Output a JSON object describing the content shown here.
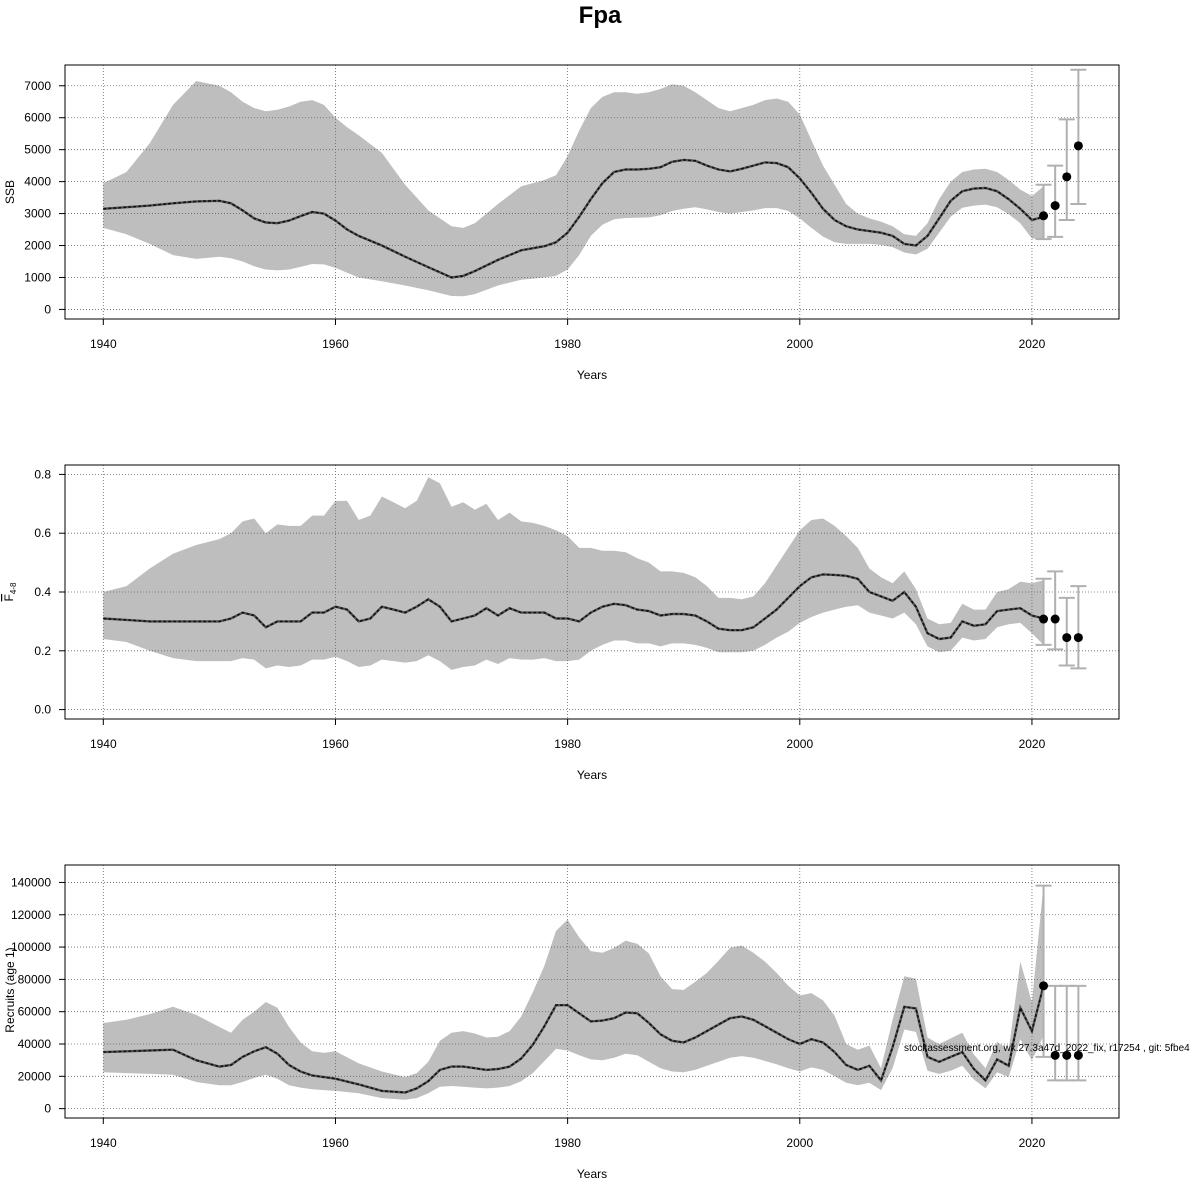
{
  "title": "Fpa",
  "footnote": "stockassessment.org, wk.27.3a47d_2022_fix, r17254 , git: 5fbe4",
  "colors": {
    "band": "#bebebe",
    "line": "#333333",
    "errorbar": "#b0b0b0",
    "point": "#000000",
    "grid": "#666666"
  },
  "chart_data": [
    {
      "type": "line",
      "ylabel": "SSB",
      "xlabel": "Years",
      "xlim": [
        1940,
        2024
      ],
      "ylim": [
        0,
        7400
      ],
      "xticks": [
        1940,
        1960,
        1980,
        2000,
        2020
      ],
      "yticks": [
        0,
        1000,
        2000,
        3000,
        4000,
        5000,
        6000,
        7000
      ],
      "grid": true,
      "series": [
        {
          "x": [
            1940,
            1942,
            1944,
            1946,
            1948,
            1950,
            1951,
            1952,
            1953,
            1954,
            1955,
            1956,
            1957,
            1958,
            1959,
            1960,
            1961,
            1962,
            1964,
            1966,
            1968,
            1970,
            1971,
            1972,
            1974,
            1976,
            1978,
            1979,
            1980,
            1981,
            1982,
            1983,
            1984,
            1985,
            1986,
            1987,
            1988,
            1989,
            1990,
            1991,
            1992,
            1993,
            1994,
            1995,
            1996,
            1997,
            1998,
            1999,
            2000,
            2001,
            2002,
            2003,
            2004,
            2005,
            2006,
            2007,
            2008,
            2009,
            2010,
            2011,
            2012,
            2013,
            2014,
            2015,
            2016,
            2017,
            2018,
            2019,
            2020,
            2021
          ],
          "y": [
            3150,
            3200,
            3250,
            3320,
            3380,
            3400,
            3320,
            3100,
            2850,
            2720,
            2700,
            2780,
            2920,
            3050,
            3000,
            2780,
            2500,
            2300,
            2000,
            1650,
            1320,
            1000,
            1050,
            1200,
            1550,
            1850,
            1980,
            2100,
            2400,
            2900,
            3450,
            3950,
            4300,
            4380,
            4380,
            4400,
            4450,
            4620,
            4680,
            4650,
            4500,
            4380,
            4320,
            4400,
            4500,
            4600,
            4580,
            4450,
            4100,
            3650,
            3150,
            2800,
            2600,
            2500,
            2450,
            2400,
            2300,
            2050,
            2000,
            2300,
            2850,
            3400,
            3700,
            3780,
            3800,
            3700,
            3450,
            3150,
            2800,
            2900
          ],
          "lower": [
            2550,
            2350,
            2050,
            1700,
            1580,
            1650,
            1600,
            1500,
            1350,
            1250,
            1220,
            1250,
            1330,
            1420,
            1410,
            1300,
            1150,
            1000,
            880,
            750,
            600,
            420,
            410,
            480,
            750,
            930,
            1000,
            1050,
            1250,
            1700,
            2300,
            2650,
            2820,
            2860,
            2870,
            2880,
            2950,
            3080,
            3150,
            3200,
            3130,
            3050,
            3000,
            3050,
            3100,
            3170,
            3170,
            3080,
            2850,
            2550,
            2280,
            2100,
            2050,
            2050,
            2050,
            2020,
            1950,
            1780,
            1720,
            1900,
            2400,
            2900,
            3180,
            3250,
            3280,
            3200,
            2980,
            2700,
            2220,
            2200
          ],
          "upper": [
            3950,
            4300,
            5200,
            6400,
            7150,
            7000,
            6800,
            6500,
            6300,
            6200,
            6250,
            6350,
            6500,
            6550,
            6400,
            6000,
            5700,
            5450,
            4900,
            3900,
            3100,
            2600,
            2550,
            2700,
            3300,
            3850,
            4050,
            4200,
            4800,
            5600,
            6300,
            6650,
            6800,
            6800,
            6750,
            6800,
            6900,
            7050,
            7000,
            6800,
            6550,
            6300,
            6200,
            6300,
            6400,
            6550,
            6600,
            6500,
            6100,
            5300,
            4500,
            3900,
            3300,
            3000,
            2850,
            2750,
            2600,
            2350,
            2300,
            2700,
            3450,
            4000,
            4300,
            4380,
            4400,
            4300,
            4050,
            3750,
            3550,
            3850
          ]
        }
      ],
      "forecast": [
        {
          "x": 2021,
          "y": 2930,
          "lo": 2200,
          "hi": 3900
        },
        {
          "x": 2022,
          "y": 3250,
          "lo": 2270,
          "hi": 4500
        },
        {
          "x": 2023,
          "y": 4150,
          "lo": 2800,
          "hi": 5950
        },
        {
          "x": 2024,
          "y": 5120,
          "lo": 3300,
          "hi": 7500
        }
      ]
    },
    {
      "type": "line",
      "ylabel": "F4-8",
      "ylabel_main": "F",
      "ylabel_sub": "4-8",
      "xlabel": "Years",
      "xlim": [
        1940,
        2024
      ],
      "ylim": [
        0,
        0.8
      ],
      "xticks": [
        1940,
        1960,
        1980,
        2000,
        2020
      ],
      "yticks": [
        0.0,
        0.2,
        0.4,
        0.6,
        0.8
      ],
      "ytick_labels": [
        "0.0",
        "0.2",
        "0.4",
        "0.6",
        "0.8"
      ],
      "grid": true,
      "series": [
        {
          "x": [
            1940,
            1942,
            1944,
            1946,
            1948,
            1950,
            1951,
            1952,
            1953,
            1954,
            1955,
            1956,
            1957,
            1958,
            1959,
            1960,
            1961,
            1962,
            1963,
            1964,
            1965,
            1966,
            1967,
            1968,
            1969,
            1970,
            1971,
            1972,
            1973,
            1974,
            1975,
            1976,
            1977,
            1978,
            1979,
            1980,
            1981,
            1982,
            1983,
            1984,
            1985,
            1986,
            1987,
            1988,
            1989,
            1990,
            1991,
            1992,
            1993,
            1994,
            1995,
            1996,
            1997,
            1998,
            1999,
            2000,
            2001,
            2002,
            2003,
            2004,
            2005,
            2006,
            2007,
            2008,
            2009,
            2010,
            2011,
            2012,
            2013,
            2014,
            2015,
            2016,
            2017,
            2018,
            2019,
            2020,
            2021
          ],
          "y": [
            0.31,
            0.305,
            0.3,
            0.3,
            0.3,
            0.3,
            0.31,
            0.33,
            0.32,
            0.28,
            0.3,
            0.3,
            0.3,
            0.33,
            0.33,
            0.35,
            0.34,
            0.3,
            0.31,
            0.35,
            0.34,
            0.33,
            0.35,
            0.375,
            0.35,
            0.3,
            0.31,
            0.32,
            0.345,
            0.32,
            0.345,
            0.33,
            0.33,
            0.33,
            0.31,
            0.31,
            0.3,
            0.33,
            0.35,
            0.36,
            0.355,
            0.34,
            0.335,
            0.32,
            0.325,
            0.325,
            0.32,
            0.3,
            0.275,
            0.27,
            0.27,
            0.28,
            0.31,
            0.34,
            0.38,
            0.42,
            0.45,
            0.46,
            0.458,
            0.455,
            0.445,
            0.4,
            0.385,
            0.37,
            0.4,
            0.35,
            0.26,
            0.24,
            0.245,
            0.3,
            0.285,
            0.29,
            0.335,
            0.34,
            0.345,
            0.32,
            0.31
          ],
          "lower": [
            0.24,
            0.23,
            0.2,
            0.175,
            0.165,
            0.165,
            0.165,
            0.175,
            0.17,
            0.14,
            0.15,
            0.145,
            0.15,
            0.17,
            0.17,
            0.18,
            0.165,
            0.145,
            0.15,
            0.17,
            0.165,
            0.16,
            0.165,
            0.185,
            0.165,
            0.135,
            0.145,
            0.15,
            0.17,
            0.155,
            0.175,
            0.17,
            0.17,
            0.175,
            0.165,
            0.165,
            0.17,
            0.2,
            0.22,
            0.235,
            0.235,
            0.225,
            0.225,
            0.215,
            0.225,
            0.225,
            0.22,
            0.21,
            0.195,
            0.195,
            0.195,
            0.2,
            0.22,
            0.245,
            0.265,
            0.295,
            0.315,
            0.33,
            0.34,
            0.35,
            0.355,
            0.33,
            0.32,
            0.31,
            0.33,
            0.29,
            0.215,
            0.195,
            0.2,
            0.245,
            0.235,
            0.24,
            0.28,
            0.29,
            0.295,
            0.26,
            0.22
          ],
          "upper": [
            0.4,
            0.42,
            0.48,
            0.53,
            0.56,
            0.58,
            0.6,
            0.64,
            0.65,
            0.6,
            0.63,
            0.625,
            0.625,
            0.66,
            0.66,
            0.71,
            0.71,
            0.645,
            0.66,
            0.725,
            0.705,
            0.685,
            0.71,
            0.79,
            0.77,
            0.69,
            0.705,
            0.68,
            0.7,
            0.645,
            0.67,
            0.64,
            0.635,
            0.625,
            0.61,
            0.59,
            0.55,
            0.55,
            0.54,
            0.54,
            0.535,
            0.515,
            0.5,
            0.47,
            0.47,
            0.465,
            0.45,
            0.42,
            0.38,
            0.38,
            0.375,
            0.385,
            0.43,
            0.49,
            0.55,
            0.61,
            0.645,
            0.65,
            0.625,
            0.59,
            0.55,
            0.48,
            0.45,
            0.43,
            0.47,
            0.41,
            0.31,
            0.29,
            0.295,
            0.36,
            0.34,
            0.34,
            0.4,
            0.41,
            0.435,
            0.43,
            0.44
          ]
        }
      ],
      "forecast": [
        {
          "x": 2021,
          "y": 0.308,
          "lo": 0.22,
          "hi": 0.445
        },
        {
          "x": 2022,
          "y": 0.308,
          "lo": 0.205,
          "hi": 0.47
        },
        {
          "x": 2023,
          "y": 0.245,
          "lo": 0.15,
          "hi": 0.38
        },
        {
          "x": 2024,
          "y": 0.245,
          "lo": 0.14,
          "hi": 0.42
        }
      ]
    },
    {
      "type": "line",
      "ylabel": "Recruits (age 1)",
      "xlabel": "Years",
      "xlim": [
        1940,
        2024
      ],
      "ylim": [
        0,
        145000
      ],
      "xticks": [
        1940,
        1960,
        1980,
        2000,
        2020
      ],
      "yticks": [
        0,
        20000,
        40000,
        60000,
        80000,
        100000,
        120000,
        140000
      ],
      "grid": true,
      "series": [
        {
          "x": [
            1940,
            1942,
            1944,
            1946,
            1948,
            1950,
            1951,
            1952,
            1953,
            1954,
            1955,
            1956,
            1957,
            1958,
            1959,
            1960,
            1962,
            1964,
            1966,
            1967,
            1968,
            1969,
            1970,
            1971,
            1972,
            1973,
            1974,
            1975,
            1976,
            1977,
            1978,
            1979,
            1980,
            1981,
            1982,
            1983,
            1984,
            1985,
            1986,
            1987,
            1988,
            1989,
            1990,
            1991,
            1992,
            1993,
            1994,
            1995,
            1996,
            1997,
            1998,
            1999,
            2000,
            2001,
            2002,
            2003,
            2004,
            2005,
            2006,
            2007,
            2008,
            2009,
            2010,
            2011,
            2012,
            2013,
            2014,
            2015,
            2016,
            2017,
            2018,
            2019,
            2020,
            2021
          ],
          "y": [
            35000,
            35500,
            36000,
            36500,
            30000,
            26000,
            27000,
            32000,
            35500,
            38000,
            34000,
            27000,
            23000,
            20500,
            19500,
            18500,
            15000,
            11000,
            10000,
            12500,
            17000,
            24000,
            26000,
            26000,
            25000,
            24000,
            24500,
            26000,
            31000,
            39500,
            51000,
            64000,
            64000,
            59000,
            54000,
            54500,
            56000,
            59500,
            59000,
            53000,
            46000,
            42000,
            41000,
            44000,
            48000,
            52000,
            56000,
            57000,
            55000,
            51000,
            47000,
            43000,
            40000,
            43000,
            41000,
            35000,
            27000,
            24000,
            26500,
            17500,
            38000,
            63000,
            62000,
            32000,
            29000,
            32000,
            35000,
            24500,
            17500,
            30500,
            26500,
            62500,
            48000,
            76000
          ],
          "lower": [
            22500,
            22000,
            21500,
            21000,
            16500,
            14500,
            14500,
            16500,
            19000,
            21000,
            18500,
            14500,
            13000,
            12000,
            11500,
            11000,
            9500,
            6500,
            5500,
            6500,
            9500,
            13500,
            14000,
            13500,
            13000,
            12500,
            13000,
            14000,
            17000,
            22000,
            29500,
            37000,
            36000,
            33000,
            30500,
            30000,
            31500,
            34000,
            33000,
            29000,
            25000,
            23000,
            22500,
            24000,
            26500,
            29000,
            31500,
            32500,
            31500,
            29500,
            27500,
            25000,
            23000,
            25500,
            24000,
            20000,
            16000,
            14500,
            16000,
            11500,
            25000,
            49000,
            47500,
            23500,
            21500,
            23500,
            26500,
            18000,
            12500,
            22500,
            19500,
            43000,
            30000,
            45000
          ],
          "upper": [
            53000,
            55000,
            58500,
            63000,
            58000,
            50500,
            47000,
            55000,
            60000,
            66000,
            62500,
            50500,
            41000,
            35500,
            34500,
            35500,
            28000,
            23000,
            19500,
            22000,
            29000,
            42000,
            47000,
            48000,
            46500,
            44000,
            44500,
            48000,
            57000,
            72000,
            88500,
            110000,
            117000,
            106000,
            97500,
            96500,
            99500,
            104000,
            102000,
            96000,
            82000,
            74000,
            73500,
            78500,
            84000,
            91500,
            99500,
            101000,
            96500,
            91000,
            84000,
            76000,
            70000,
            71500,
            67000,
            57500,
            40000,
            36500,
            39000,
            25000,
            55000,
            82000,
            80500,
            44000,
            40000,
            43500,
            47000,
            33500,
            25000,
            41500,
            36000,
            91000,
            66000,
            138000
          ]
        }
      ],
      "forecast": [
        {
          "x": 2021,
          "y": 76000,
          "lo": 32000,
          "hi": 138000
        },
        {
          "x": 2022,
          "y": 33000,
          "lo": 17500,
          "hi": 76000
        },
        {
          "x": 2023,
          "y": 33000,
          "lo": 17500,
          "hi": 76000
        },
        {
          "x": 2024,
          "y": 33000,
          "lo": 17500,
          "hi": 76000
        }
      ]
    }
  ]
}
